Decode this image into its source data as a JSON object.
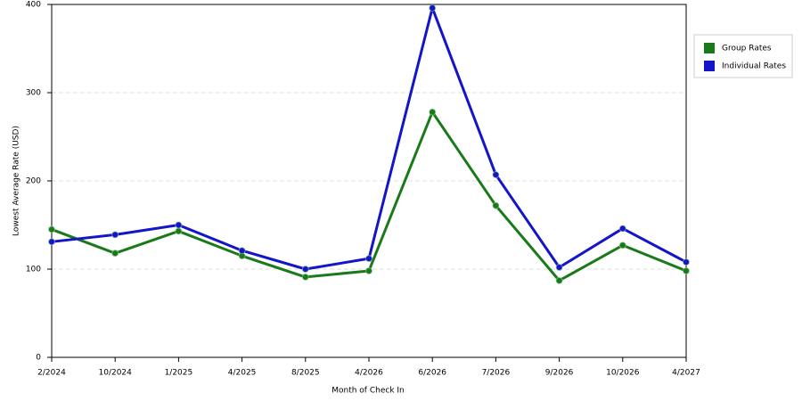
{
  "chart_data": {
    "type": "line",
    "x_label": "Month of Check In",
    "y_label": "Lowest Average Rate (USD)",
    "categories": [
      "2/2024",
      "10/2024",
      "1/2025",
      "4/2025",
      "8/2025",
      "4/2026",
      "6/2026",
      "7/2026",
      "9/2026",
      "10/2026",
      "4/2027"
    ],
    "series": [
      {
        "name": "Group Rates",
        "color": "#1a7a1a",
        "values": [
          145,
          118,
          143,
          115,
          91,
          98,
          278,
          172,
          87,
          127,
          98
        ]
      },
      {
        "name": "Individual Rates",
        "color": "#1414c8",
        "values": [
          131,
          139,
          150,
          121,
          100,
          112,
          396,
          207,
          102,
          146,
          108
        ]
      }
    ],
    "ylim": [
      0,
      400
    ],
    "yticks": [
      0,
      100,
      200,
      300,
      400
    ],
    "grid": true,
    "legend": "right"
  }
}
